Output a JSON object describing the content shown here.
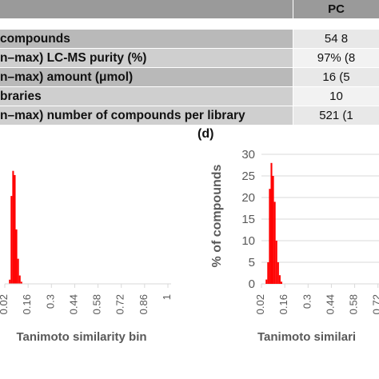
{
  "table": {
    "header_right": "PC",
    "rows": [
      {
        "label": "compounds",
        "value": "54 8"
      },
      {
        "label": "n–max) LC-MS purity (%)",
        "value": "97% (8"
      },
      {
        "label": "n–max) amount (μmol)",
        "value": "16 (5"
      },
      {
        "label": "braries",
        "value": "10"
      },
      {
        "label": "n–max) number of compounds per library",
        "value": "521 (1"
      }
    ]
  },
  "panel_label_d": "(d)",
  "chart_data": [
    {
      "type": "bar",
      "xlabel": "Tanimoto similarity bin",
      "ylabel": "",
      "tick_labels": [
        "0.02",
        "0.16",
        "0.3",
        "0.44",
        "0.58",
        "0.72",
        "0.86",
        "1"
      ],
      "tick_values": [
        0.02,
        0.16,
        0.3,
        0.44,
        0.58,
        0.72,
        0.86,
        1.0
      ],
      "xlim": [
        0.02,
        1.0
      ],
      "ylim": [
        0,
        30
      ],
      "bar_color": "#ff0000",
      "bins": [
        {
          "x": 0.05,
          "y": 1
        },
        {
          "x": 0.06,
          "y": 21
        },
        {
          "x": 0.07,
          "y": 27
        },
        {
          "x": 0.08,
          "y": 26
        },
        {
          "x": 0.09,
          "y": 13
        },
        {
          "x": 0.1,
          "y": 6
        },
        {
          "x": 0.11,
          "y": 2
        },
        {
          "x": 0.12,
          "y": 0.5
        }
      ]
    },
    {
      "type": "bar",
      "xlabel": "Tanimoto similari",
      "ylabel": "% of  compounds",
      "yticks": [
        "0",
        "5",
        "10",
        "15",
        "20",
        "25",
        "30"
      ],
      "tick_labels": [
        "0.02",
        "0.16",
        "0.3",
        "0.44",
        "0.58",
        "0.72"
      ],
      "tick_values": [
        0.02,
        0.16,
        0.3,
        0.44,
        0.58,
        0.72
      ],
      "xlim": [
        0.02,
        1.0
      ],
      "ylim": [
        0,
        30
      ],
      "bar_color": "#ff0000",
      "bins": [
        {
          "x": 0.05,
          "y": 1
        },
        {
          "x": 0.06,
          "y": 5
        },
        {
          "x": 0.07,
          "y": 22
        },
        {
          "x": 0.08,
          "y": 28
        },
        {
          "x": 0.09,
          "y": 25
        },
        {
          "x": 0.1,
          "y": 19
        },
        {
          "x": 0.11,
          "y": 10
        },
        {
          "x": 0.12,
          "y": 5
        },
        {
          "x": 0.13,
          "y": 2
        },
        {
          "x": 0.14,
          "y": 0.5
        }
      ]
    }
  ]
}
